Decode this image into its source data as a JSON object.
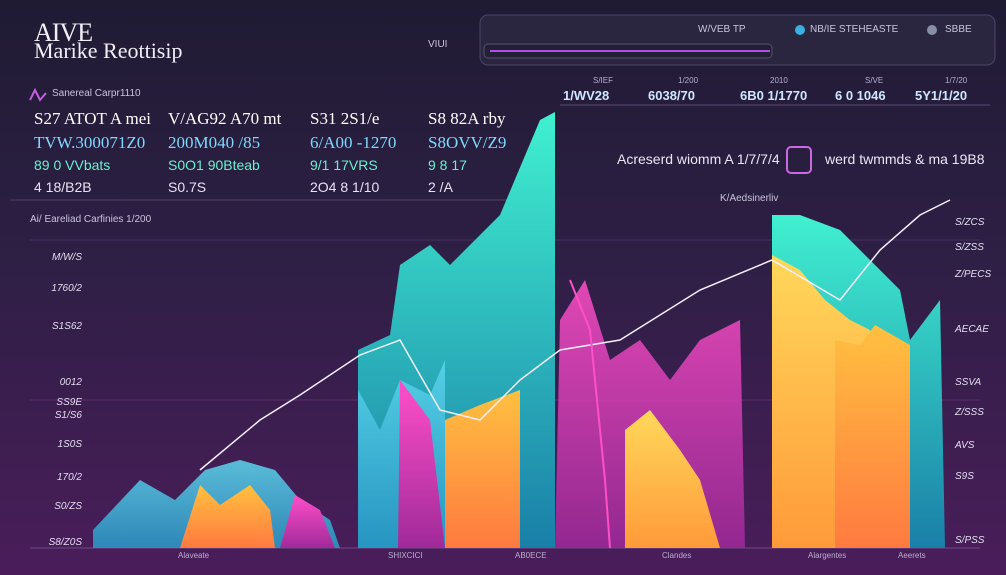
{
  "header": {
    "logo_line1": "AIVE",
    "logo_line2": "Marike Reottisip",
    "center_label": "VIUI",
    "tabs": [
      "W/VEB TP",
      "NB/IE STEHEASTE",
      "SBBE"
    ]
  },
  "top_stats": [
    {
      "label": "S/IEF",
      "value": "1/WV28"
    },
    {
      "label": "1/200",
      "value": "6038/70"
    },
    {
      "label": "2010",
      "value": "6B0 1/1770"
    },
    {
      "label": "S/VE",
      "value": "6 0 1046"
    },
    {
      "label": "1/7/20",
      "value": "5Y1/1/20"
    }
  ],
  "left_panel": {
    "title": "Sanereal Carpr1110",
    "rows": [
      [
        "S27 ATOT A mei",
        "V/AG92 A70 mt",
        "S31 2S1/e",
        "S8 82A rby"
      ],
      [
        "TVW.300071Z0",
        "200M040 /85",
        "6/A00 -1270",
        "S8OVV/Z9"
      ],
      [
        "89 0 VVbats",
        "S0O1 90Bteab",
        "9/1 17VRS",
        "9 8 17"
      ],
      [
        "4 18/B2B",
        "S0.7S",
        "2O4 8 1/10",
        "2 /A"
      ]
    ]
  },
  "callout": {
    "left": "Acreserd wiomm A 1/7/7/4",
    "right": "werd twmmds & ma 19B8"
  },
  "chart": {
    "title": "Ai/ Eareliad Carfinies 1/200",
    "note": "K/Aedsinerliv",
    "left_axis": [
      "M/W/S",
      "1760/2",
      "S1S62",
      "0012",
      "SS9E",
      "S1/S6",
      "1S0S",
      "170/2",
      "S0/ZS",
      "S8/Z0S"
    ],
    "right_axis": [
      "S/ZCS",
      "S/ZSS",
      "Z/PECS",
      "AECAE",
      "SSVA",
      "Z/SSS",
      "AVS",
      "S9S",
      "S/PSS"
    ],
    "x_labels": [
      "Alaveate",
      "SHIXCICI",
      "AB0ECE",
      "Clandes",
      "Alargentes",
      "Aeerets"
    ]
  }
}
